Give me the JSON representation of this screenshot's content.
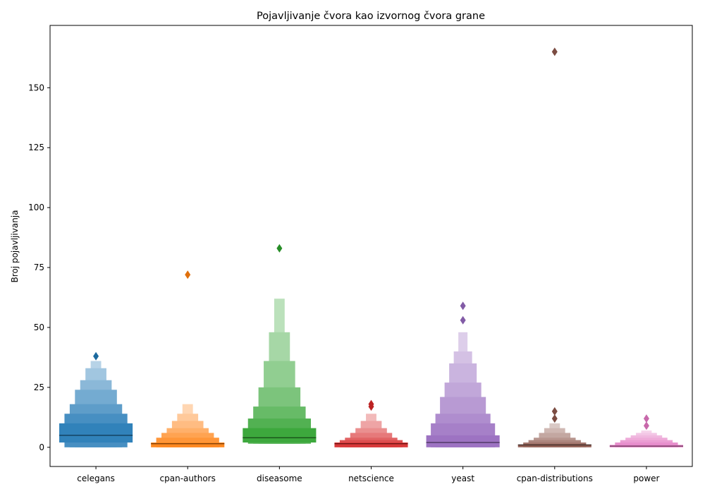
{
  "chart_data": {
    "type": "boxen",
    "title": "Pojavljivanje čvora kao izvornog čvora grane",
    "xlabel": "",
    "ylabel": "Broj pojavljivanja",
    "ylim": [
      -8,
      176
    ],
    "yticks": [
      0,
      25,
      50,
      75,
      100,
      125,
      150
    ],
    "grid": false,
    "categories": [
      "celegans",
      "cpan-authors",
      "diseasome",
      "netscience",
      "yeast",
      "cpan-distributions",
      "power"
    ],
    "series": [
      {
        "category": "celegans",
        "color": "#1f77b4",
        "median": 5,
        "boxes": [
          [
            2,
            10
          ],
          [
            0,
            14
          ],
          [
            0,
            18
          ],
          [
            0,
            24
          ],
          [
            0,
            28
          ],
          [
            0,
            33
          ],
          [
            0,
            36
          ]
        ],
        "outliers": [
          38
        ]
      },
      {
        "category": "cpan-authors",
        "color": "#ff7f0e",
        "median": 1.5,
        "boxes": [
          [
            0,
            2
          ],
          [
            0,
            4
          ],
          [
            0,
            6
          ],
          [
            0,
            8
          ],
          [
            0,
            11
          ],
          [
            0,
            14
          ],
          [
            0,
            18
          ]
        ],
        "outliers": [
          72
        ]
      },
      {
        "category": "diseasome",
        "color": "#2ca02c",
        "median": 4,
        "boxes": [
          [
            2,
            8
          ],
          [
            1.5,
            12
          ],
          [
            1.5,
            17
          ],
          [
            1.5,
            25
          ],
          [
            1.5,
            36
          ],
          [
            1.5,
            48
          ],
          [
            1.5,
            62
          ]
        ],
        "outliers": [
          83
        ]
      },
      {
        "category": "netscience",
        "color": "#d62728",
        "median": 1.5,
        "boxes": [
          [
            0,
            2
          ],
          [
            0,
            3
          ],
          [
            0,
            4
          ],
          [
            0,
            6
          ],
          [
            0,
            8
          ],
          [
            0,
            11
          ],
          [
            0,
            14
          ]
        ],
        "outliers": [
          17,
          18
        ]
      },
      {
        "category": "yeast",
        "color": "#9467bd",
        "median": 2,
        "boxes": [
          [
            0,
            5
          ],
          [
            0,
            10
          ],
          [
            0,
            14
          ],
          [
            0,
            21
          ],
          [
            0,
            27
          ],
          [
            0,
            35
          ],
          [
            0,
            40
          ],
          [
            0,
            48
          ]
        ],
        "outliers": [
          53,
          59
        ]
      },
      {
        "category": "cpan-distributions",
        "color": "#8c564b",
        "median": 1,
        "boxes": [
          [
            0,
            1
          ],
          [
            0,
            2
          ],
          [
            0,
            3
          ],
          [
            0,
            4
          ],
          [
            0,
            6
          ],
          [
            0,
            8
          ],
          [
            0,
            10
          ]
        ],
        "outliers": [
          12,
          15,
          165
        ]
      },
      {
        "category": "power",
        "color": "#e377c2",
        "median": 0.5,
        "boxes": [
          [
            0,
            1
          ],
          [
            0,
            2
          ],
          [
            0,
            3
          ],
          [
            0,
            4
          ],
          [
            0,
            5
          ],
          [
            0,
            6
          ],
          [
            0,
            7
          ]
        ],
        "outliers": [
          9,
          12
        ]
      }
    ]
  }
}
